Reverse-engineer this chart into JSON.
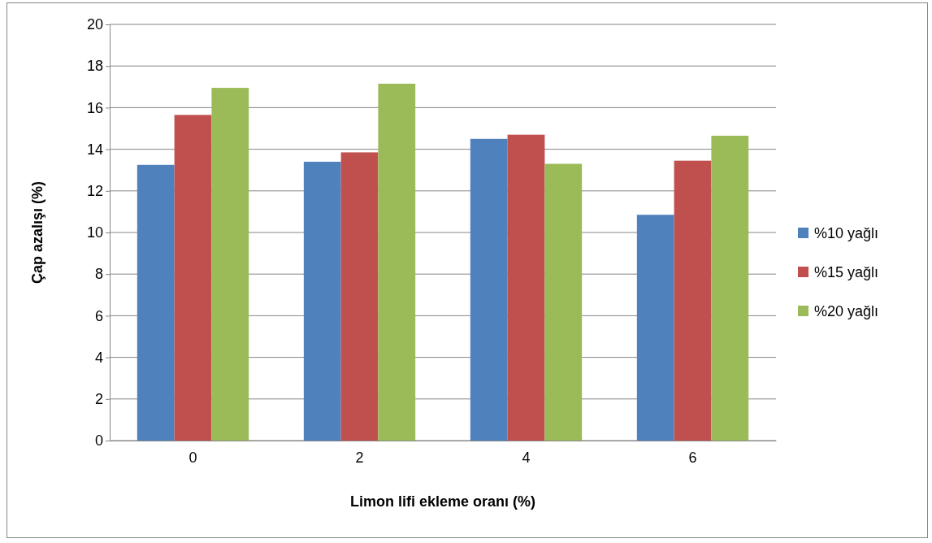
{
  "chart_data": {
    "type": "bar",
    "xlabel": "Limon lifi ekleme oranı (%)",
    "ylabel": "Çap azalışı (%)",
    "categories": [
      "0",
      "2",
      "4",
      "6"
    ],
    "series": [
      {
        "name": "%10 yağlı",
        "color": "#4f81bd",
        "values": [
          13.25,
          13.4,
          14.5,
          10.85
        ]
      },
      {
        "name": "%15 yağlı",
        "color": "#c0504d",
        "values": [
          15.65,
          13.85,
          14.7,
          13.45
        ]
      },
      {
        "name": "%20 yağlı",
        "color": "#9bbb59",
        "values": [
          16.95,
          17.15,
          13.3,
          14.65
        ]
      }
    ],
    "ylim": [
      0,
      20
    ],
    "yticks": [
      0,
      2,
      4,
      6,
      8,
      10,
      12,
      14,
      16,
      18,
      20
    ],
    "grid": "y",
    "legend": "right"
  }
}
